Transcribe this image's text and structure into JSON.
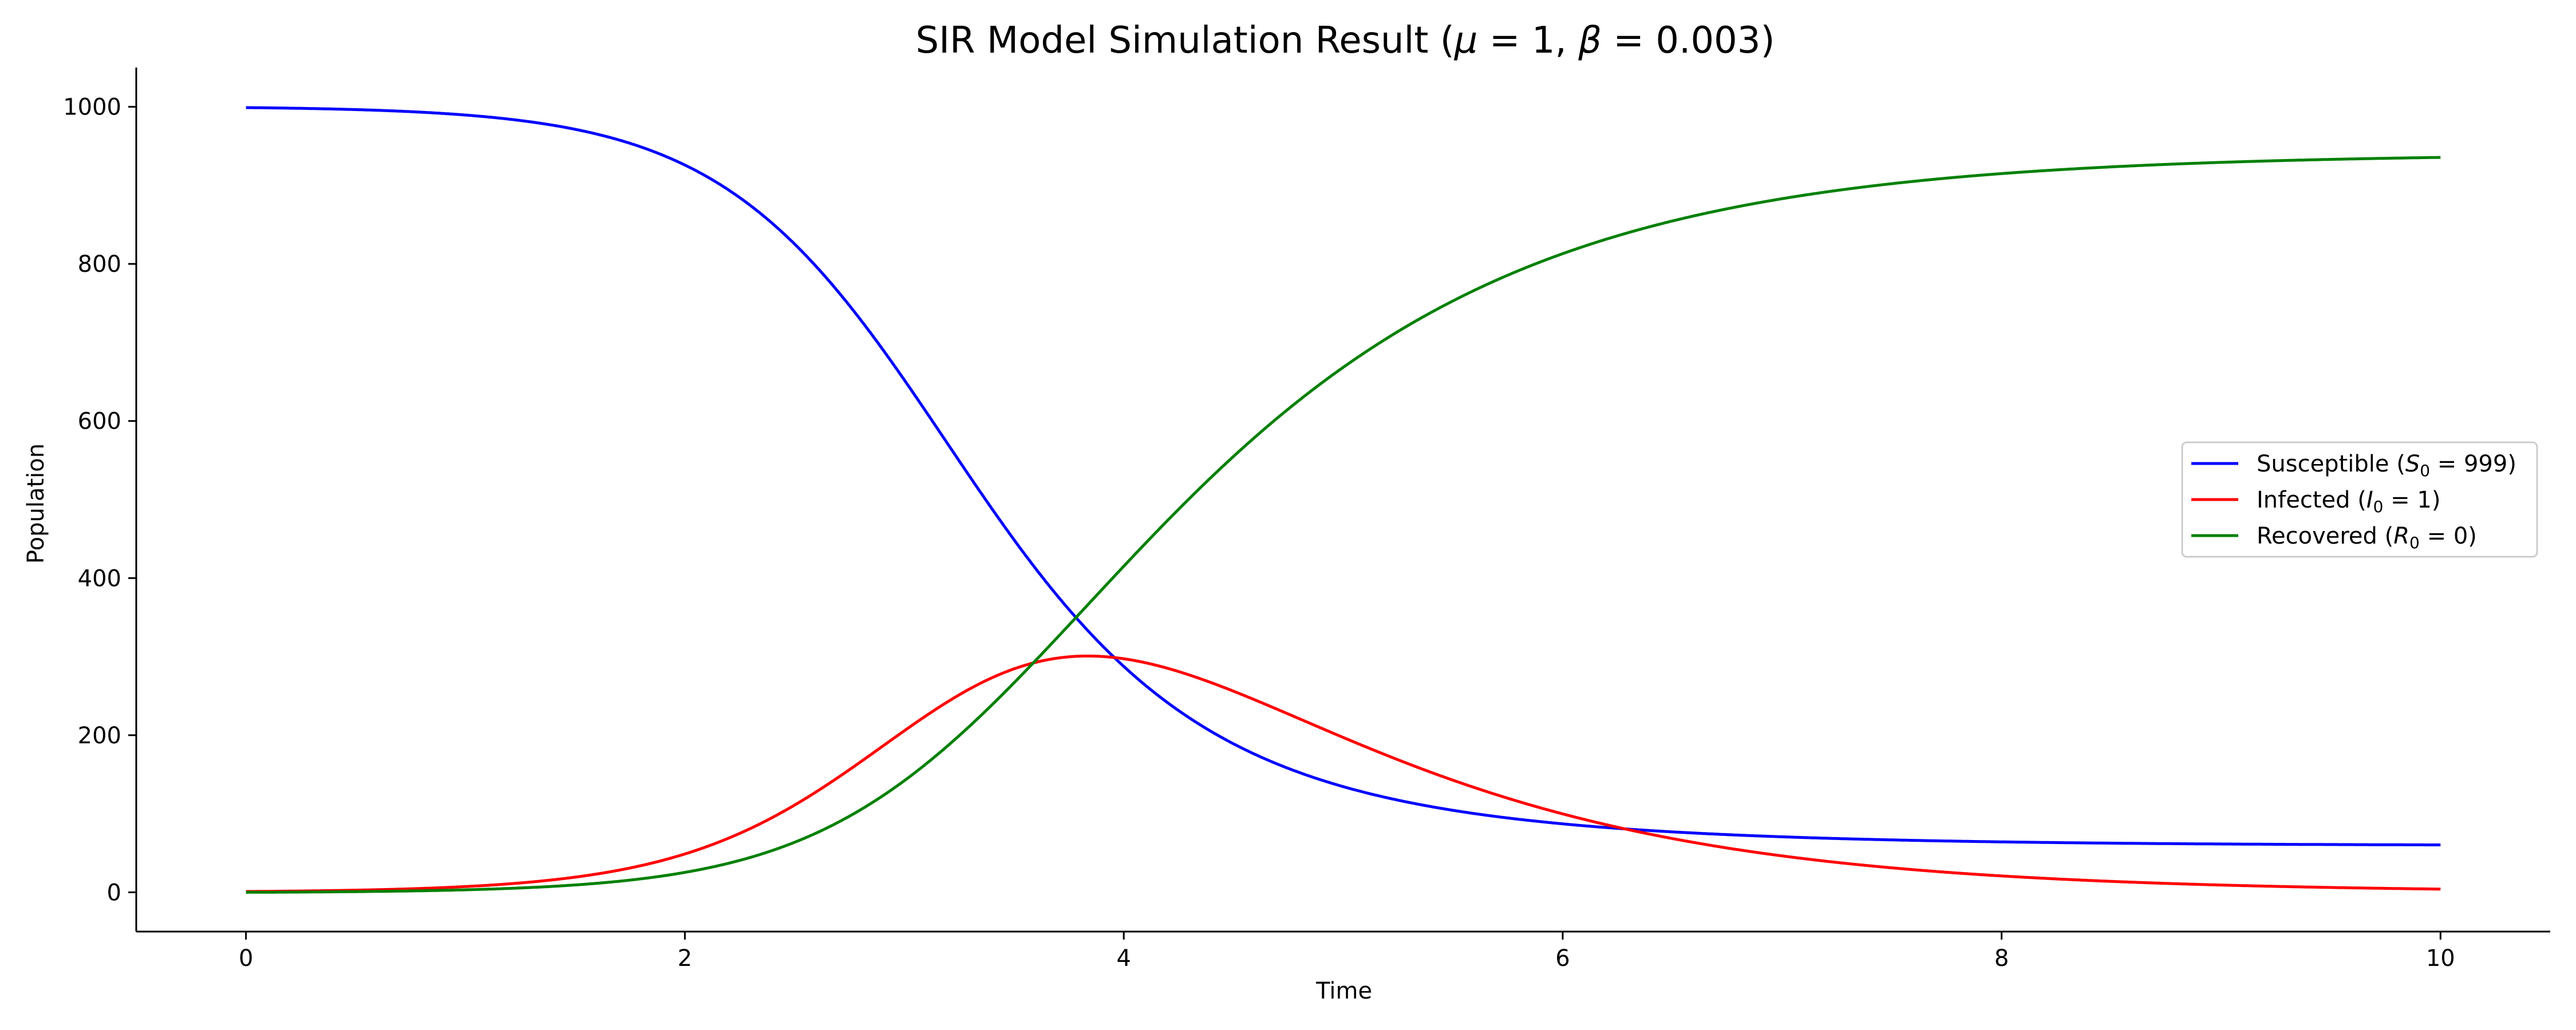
{
  "chart_data": {
    "type": "line",
    "title_parts": [
      "SIR Model Simulation Result (",
      "μ",
      " = 1, ",
      "β",
      " = 0.003)"
    ],
    "xlabel": "Time",
    "ylabel": "Population",
    "xlim": [
      -0.5,
      10.5
    ],
    "ylim": [
      -50,
      1050
    ],
    "xticks": [
      0,
      2,
      4,
      6,
      8,
      10
    ],
    "xtick_labels": [
      "0",
      "2",
      "4",
      "6",
      "8",
      "10"
    ],
    "yticks": [
      0,
      200,
      400,
      600,
      800,
      1000
    ],
    "ytick_labels": [
      "0",
      "200",
      "400",
      "600",
      "800",
      "1000"
    ],
    "grid": false,
    "legend_position": "center-right",
    "model": {
      "N": 1000,
      "beta": 0.003,
      "mu": 1,
      "S0": 999,
      "I0": 1,
      "R0": 0,
      "t_end": 10
    },
    "series": [
      {
        "name_prefix": "Susceptible (",
        "name_var": "S",
        "name_sub": "0",
        "name_suffix": " = 999)",
        "color": "#0000ff"
      },
      {
        "name_prefix": "Infected (",
        "name_var": "I",
        "name_sub": "0",
        "name_suffix": " = 1)",
        "color": "#ff0000"
      },
      {
        "name_prefix": "Recovered (",
        "name_var": "R",
        "name_sub": "0",
        "name_suffix": " = 0)",
        "color": "#008000"
      }
    ]
  }
}
